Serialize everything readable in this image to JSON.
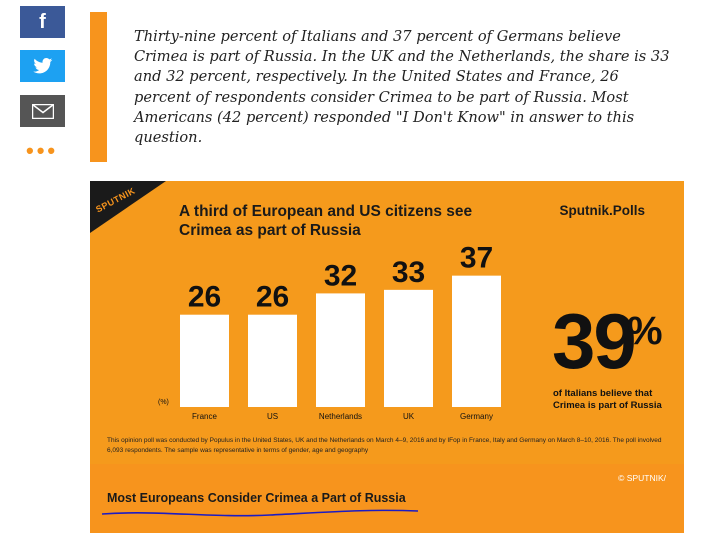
{
  "share": {
    "items": [
      {
        "name": "facebook",
        "icon": "facebook-icon",
        "glyph": "f",
        "color": "#3b5998"
      },
      {
        "name": "twitter",
        "icon": "twitter-icon",
        "color": "#1da1f2"
      },
      {
        "name": "email",
        "icon": "mail-icon",
        "color": "#555555"
      }
    ],
    "more": "•••"
  },
  "quote": {
    "text": "Thirty-nine percent of Italians and 37 percent of Germans believe Crimea is part of Russia. In the UK and the Netherlands, the share is 33 and 32 percent, respectively. In the United States and France, 26 percent of respondents consider Crimea to be part of Russia. Most Americans (42 percent) responded \"I Don't Know\" in answer to this question.",
    "accent": "#f7941d"
  },
  "infographic": {
    "logo": "SPUTNIK",
    "headline": "A third of European and US citizens see Crimea as part of Russia",
    "brand": "Sputnik.Polls",
    "big_value": "39",
    "big_unit": "%",
    "big_caption": "of Italians believe that Crimea is part of Russia",
    "note": "This opinion poll was conducted by Populus in the United States, UK and the Netherlands on March 4–9, 2016 and by IFop in France, Italy and Germany on March 8–10, 2016. The poll involved 6,093 respondents. The sample was representative in terms of gender, age and geography",
    "copyright": "© SPUTNIK/",
    "caption": "Most Europeans Consider Crimea a Part of Russia",
    "background": "#f7941d"
  },
  "chart_data": {
    "type": "bar",
    "unit_label": "(%)",
    "categories": [
      "France",
      "US",
      "Netherlands",
      "UK",
      "Germany"
    ],
    "values": [
      26,
      26,
      32,
      33,
      37
    ],
    "bar_color": "#ffffff"
  }
}
